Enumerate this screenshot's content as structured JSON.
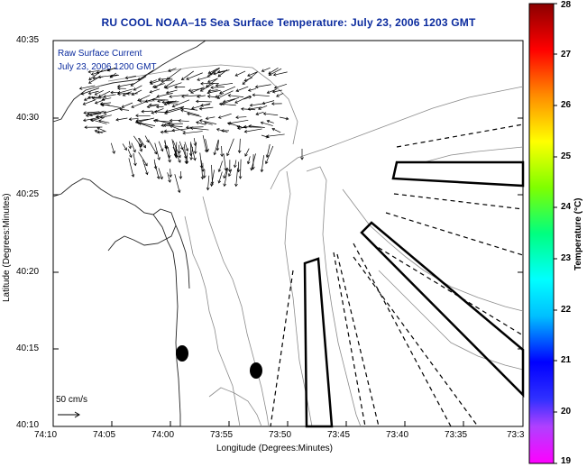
{
  "title": "RU COOL  NOAA–15  Sea Surface Temperature:  July 23, 2006 1203 GMT",
  "overlay": {
    "line1": "Raw Surface Current",
    "line2": "July 23, 2006 1200 GMT"
  },
  "scale": {
    "label": "50 cm/s"
  },
  "x_axis": {
    "label": "Longitude (Degrees:Minutes)",
    "ticks": [
      "74:10",
      "74:05",
      "74:00",
      "73:55",
      "73:50",
      "73:45",
      "73:40",
      "73:35",
      "73:3"
    ]
  },
  "y_axis": {
    "label": "Latitude (Degrees:Minutes)",
    "ticks": [
      "40:35",
      "40:30",
      "40:25",
      "40:20",
      "40:15",
      "40:10"
    ]
  },
  "colorbar": {
    "title": "Temperature (°C)",
    "ticks": [
      "28",
      "27",
      "26",
      "25",
      "24",
      "23",
      "22",
      "21",
      "20",
      "19"
    ],
    "min": 19,
    "max": 28,
    "colors": [
      "#ff00ff",
      "#8a2be2",
      "#0000ff",
      "#00bfff",
      "#00ffff",
      "#00ff80",
      "#7fff00",
      "#ffff00",
      "#ff8c00",
      "#ff0000",
      "#8b0000"
    ]
  }
}
